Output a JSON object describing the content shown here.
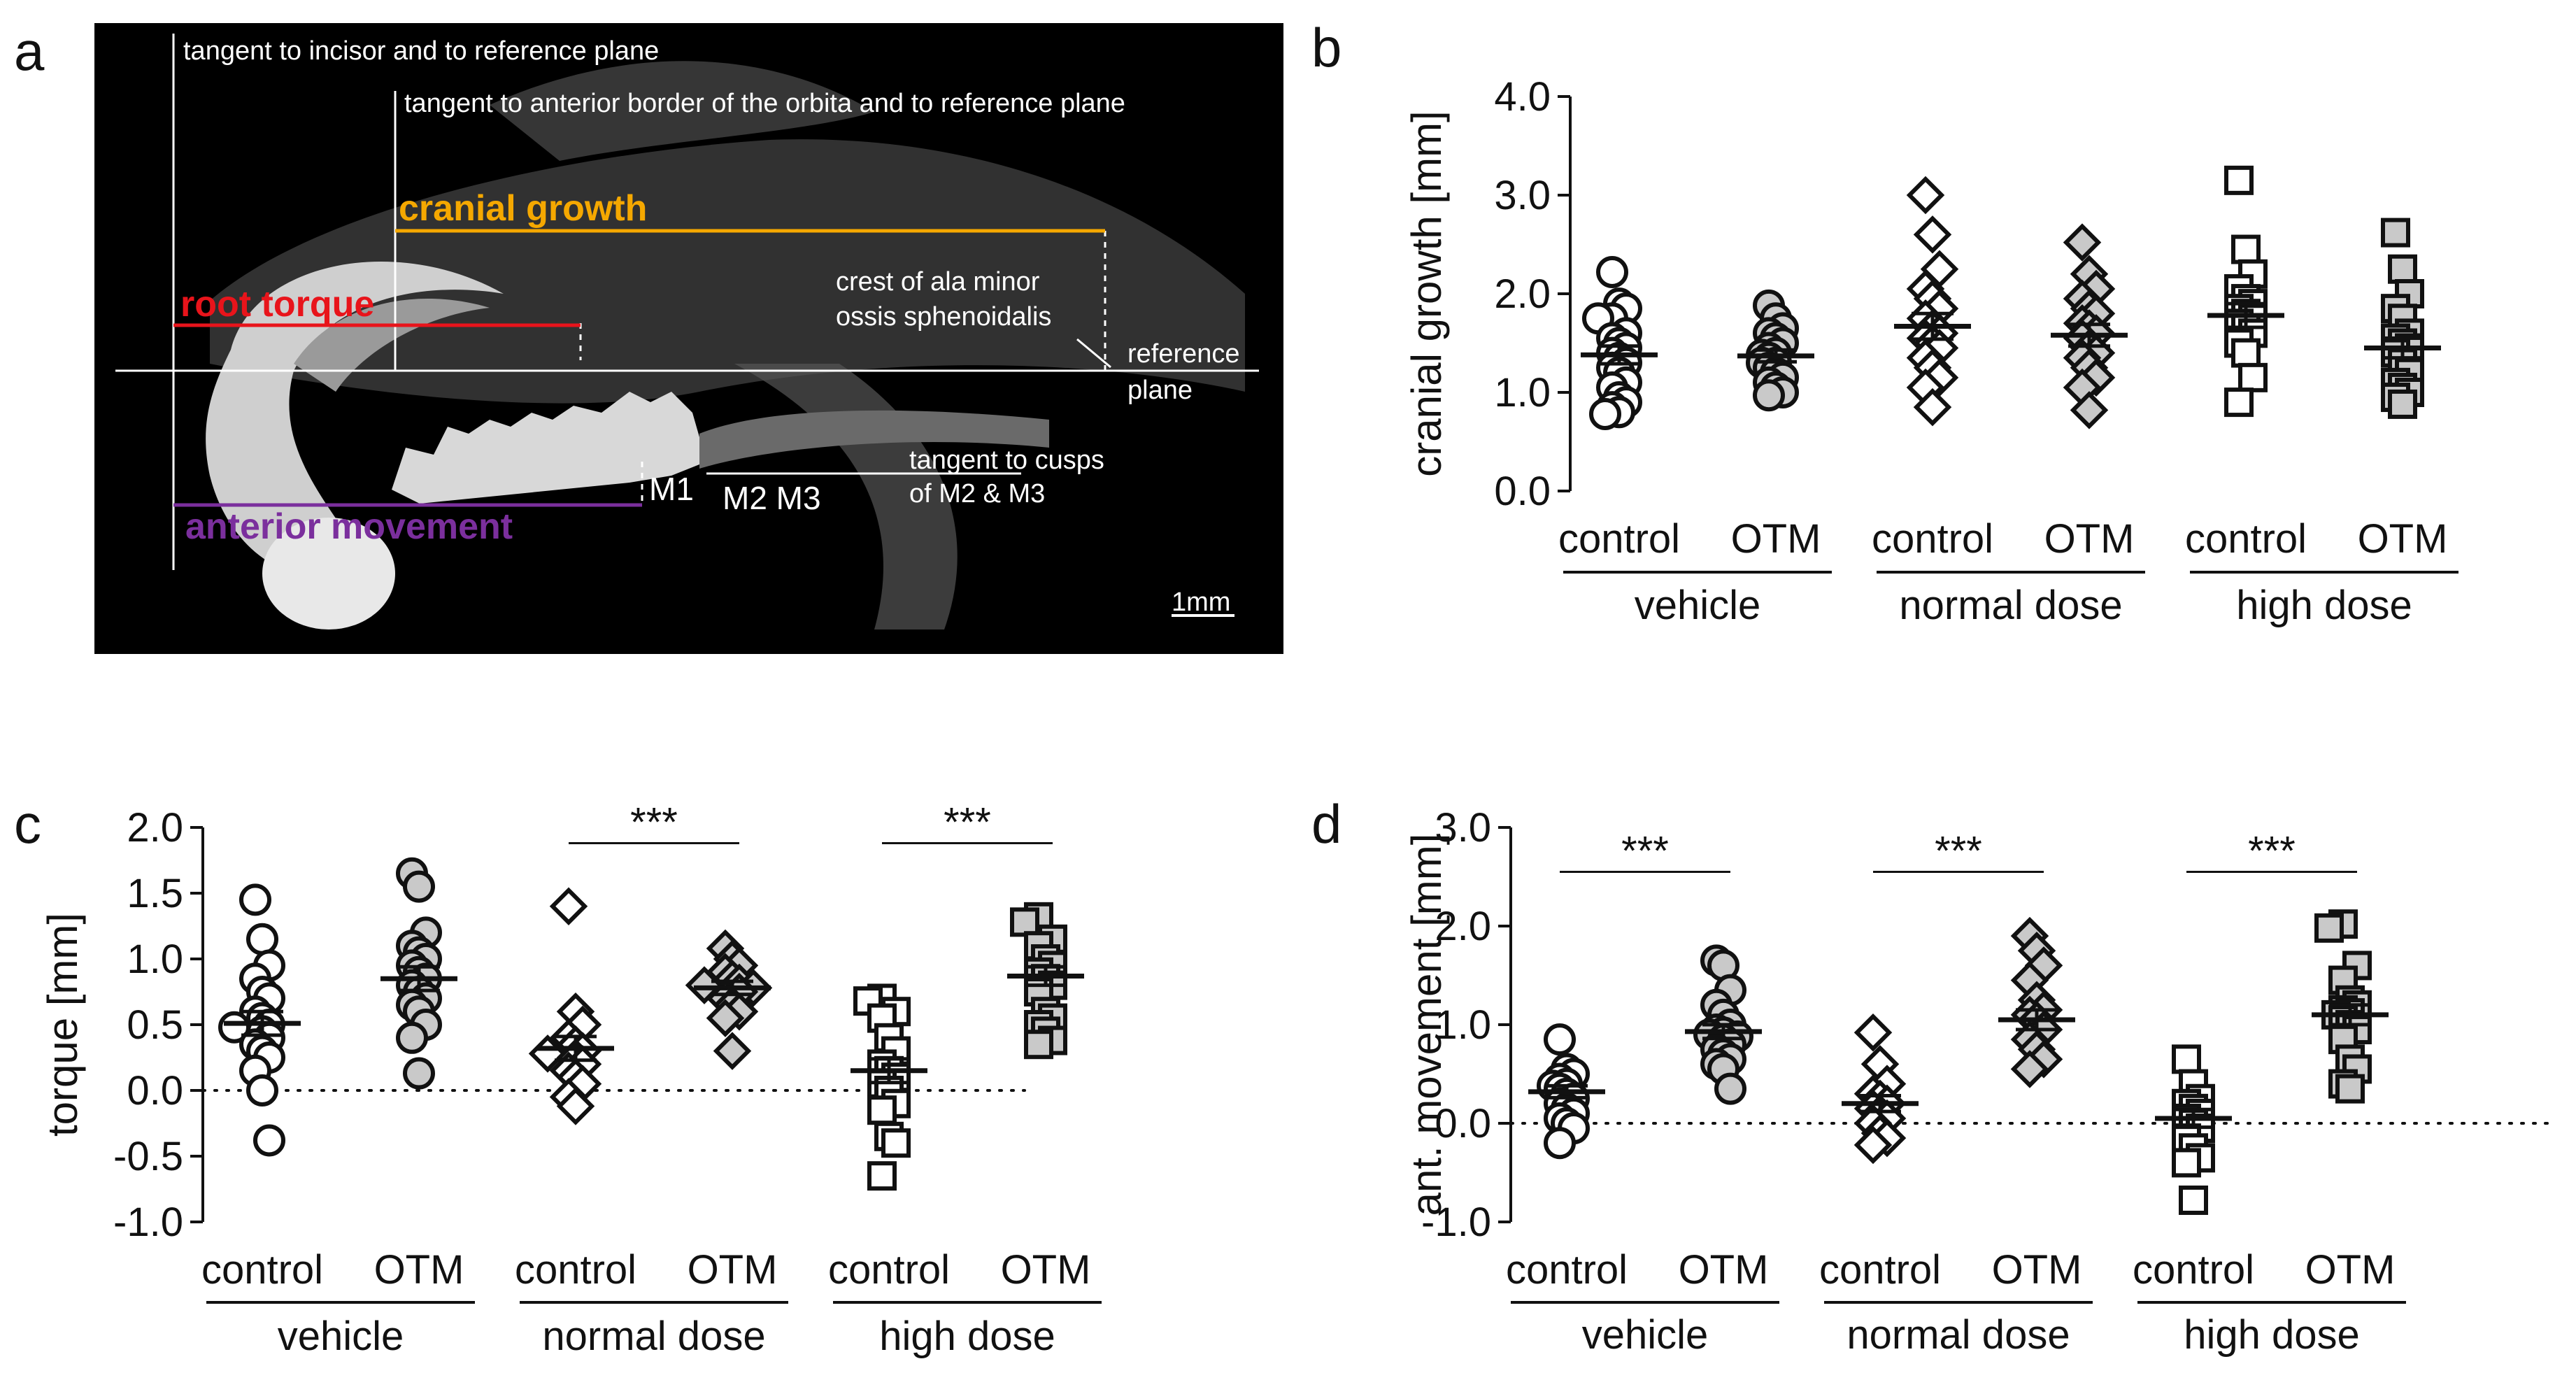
{
  "panel_a": {
    "label": "a",
    "annotations": {
      "tangent_incisor": "tangent to incisor and to reference plane",
      "tangent_orbita": "tangent to anterior border of the orbita and to reference plane",
      "cranial_growth": "cranial growth",
      "root_torque": "root torque",
      "anterior_movement": "anterior movement",
      "crest_line1": "crest of ala minor",
      "crest_line2": "ossis sphenoidalis",
      "reference_line1": "reference",
      "reference_line2": "plane",
      "m1": "M1",
      "m2m3": "M2 M3",
      "tangent_cusps_line1": "tangent to cusps",
      "tangent_cusps_line2": "of M2 & M3",
      "scale": "1mm"
    },
    "colors": {
      "cranial": "#f5a800",
      "torque": "#e8141b",
      "anterior": "#7b2f9d"
    }
  },
  "chart_data": [
    {
      "panel": "b",
      "type": "scatter",
      "ylabel": "cranial growth [mm]",
      "ylim": [
        0.0,
        4.0
      ],
      "yticks": [
        "0.0",
        "1.0",
        "2.0",
        "3.0",
        "4.0"
      ],
      "ytick_values": [
        0,
        1,
        2,
        3,
        4
      ],
      "zero_line": false,
      "columns": [
        "control",
        "OTM",
        "control",
        "OTM",
        "control",
        "OTM"
      ],
      "groups": [
        "vehicle",
        "normal dose",
        "high dose"
      ],
      "series": [
        {
          "name": "vehicle control",
          "marker": "circle",
          "fill": "white",
          "mean": 1.38,
          "sem": 0.09,
          "values": [
            2.22,
            1.9,
            1.85,
            1.75,
            1.75,
            1.6,
            1.55,
            1.5,
            1.45,
            1.4,
            1.35,
            1.3,
            1.25,
            1.2,
            1.1,
            1.05,
            0.95,
            0.9,
            0.85,
            0.8,
            0.78
          ]
        },
        {
          "name": "vehicle OTM",
          "marker": "circle",
          "fill": "grey",
          "mean": 1.37,
          "sem": 0.06,
          "values": [
            1.88,
            1.75,
            1.65,
            1.6,
            1.55,
            1.5,
            1.45,
            1.4,
            1.38,
            1.35,
            1.3,
            1.3,
            1.25,
            1.2,
            1.15,
            1.1,
            1.05,
            1.0,
            0.97
          ]
        },
        {
          "name": "normal dose control",
          "marker": "diamond",
          "fill": "white",
          "mean": 1.67,
          "sem": 0.13,
          "values": [
            3.0,
            2.6,
            2.25,
            2.05,
            1.95,
            1.85,
            1.75,
            1.65,
            1.6,
            1.55,
            1.5,
            1.45,
            1.35,
            1.25,
            1.15,
            1.05,
            0.85
          ]
        },
        {
          "name": "normal dose OTM",
          "marker": "diamond",
          "fill": "grey",
          "mean": 1.58,
          "sem": 0.11,
          "values": [
            2.52,
            2.2,
            2.05,
            1.95,
            1.85,
            1.8,
            1.7,
            1.65,
            1.6,
            1.55,
            1.45,
            1.4,
            1.35,
            1.25,
            1.15,
            1.05,
            0.82
          ]
        },
        {
          "name": "high dose control",
          "marker": "square",
          "fill": "white",
          "mean": 1.78,
          "sem": 0.12,
          "values": [
            3.15,
            2.45,
            2.2,
            2.05,
            1.95,
            1.9,
            1.85,
            1.8,
            1.75,
            1.7,
            1.65,
            1.6,
            1.5,
            1.4,
            1.15,
            0.9
          ]
        },
        {
          "name": "high dose OTM",
          "marker": "square",
          "fill": "grey",
          "mean": 1.45,
          "sem": 0.1,
          "values": [
            2.62,
            2.25,
            2.0,
            1.85,
            1.75,
            1.6,
            1.55,
            1.5,
            1.45,
            1.4,
            1.3,
            1.2,
            1.1,
            1.05,
            1.0,
            0.95,
            0.88
          ]
        }
      ],
      "significance": []
    },
    {
      "panel": "c",
      "type": "scatter",
      "ylabel": "torque [mm]",
      "ylim": [
        -1.0,
        2.0
      ],
      "yticks": [
        "-1.0",
        "-0.5",
        "0.0",
        "0.5",
        "1.0",
        "1.5",
        "2.0"
      ],
      "ytick_values": [
        -1.0,
        -0.5,
        0.0,
        0.5,
        1.0,
        1.5,
        2.0
      ],
      "zero_line": true,
      "columns": [
        "control",
        "OTM",
        "control",
        "OTM",
        "control",
        "OTM"
      ],
      "groups": [
        "vehicle",
        "normal dose",
        "high dose"
      ],
      "series": [
        {
          "name": "vehicle control",
          "marker": "circle",
          "fill": "white",
          "mean": 0.51,
          "sem": 0.09,
          "values": [
            1.45,
            1.15,
            0.95,
            0.85,
            0.75,
            0.7,
            0.6,
            0.55,
            0.5,
            0.48,
            0.45,
            0.4,
            0.35,
            0.3,
            0.25,
            0.15,
            0.0,
            -0.38
          ]
        },
        {
          "name": "vehicle OTM",
          "marker": "circle",
          "fill": "grey",
          "mean": 0.85,
          "sem": 0.09,
          "values": [
            1.65,
            1.55,
            1.2,
            1.1,
            1.05,
            1.0,
            0.95,
            0.9,
            0.85,
            0.8,
            0.75,
            0.7,
            0.65,
            0.6,
            0.5,
            0.4,
            0.13
          ]
        },
        {
          "name": "normal dose control",
          "marker": "diamond",
          "fill": "white",
          "mean": 0.32,
          "sem": 0.09,
          "values": [
            1.4,
            0.6,
            0.5,
            0.4,
            0.35,
            0.3,
            0.28,
            0.25,
            0.2,
            0.15,
            0.1,
            0.05,
            -0.05,
            -0.12
          ]
        },
        {
          "name": "normal dose OTM",
          "marker": "diamond",
          "fill": "grey",
          "mean": 0.78,
          "sem": 0.05,
          "values": [
            1.08,
            1.0,
            0.95,
            0.9,
            0.85,
            0.82,
            0.8,
            0.78,
            0.75,
            0.7,
            0.65,
            0.6,
            0.55,
            0.3
          ]
        },
        {
          "name": "high dose control",
          "marker": "square",
          "fill": "white",
          "mean": 0.15,
          "sem": 0.09,
          "values": [
            0.7,
            0.68,
            0.6,
            0.55,
            0.4,
            0.3,
            0.2,
            0.15,
            0.1,
            0.05,
            0.0,
            -0.1,
            -0.15,
            -0.35,
            -0.4,
            -0.65
          ]
        },
        {
          "name": "high dose OTM",
          "marker": "square",
          "fill": "grey",
          "mean": 0.87,
          "sem": 0.07,
          "values": [
            1.32,
            1.28,
            1.15,
            1.1,
            1.0,
            0.95,
            0.9,
            0.85,
            0.8,
            0.75,
            0.6,
            0.55,
            0.5,
            0.45,
            0.38,
            0.35
          ]
        }
      ],
      "significance": [
        {
          "label": "***",
          "from": 2,
          "to": 3,
          "y": 1.88
        },
        {
          "label": "***",
          "from": 4,
          "to": 5,
          "y": 1.88
        }
      ]
    },
    {
      "panel": "d",
      "type": "scatter",
      "ylabel": "ant. movement [mm]",
      "ylim": [
        -1.0,
        3.0
      ],
      "yticks": [
        "-1.0",
        "0.0",
        "1.0",
        "2.0",
        "3.0"
      ],
      "ytick_values": [
        -1.0,
        0.0,
        1.0,
        2.0,
        3.0
      ],
      "zero_line": true,
      "columns": [
        "control",
        "OTM",
        "control",
        "OTM",
        "control",
        "OTM"
      ],
      "groups": [
        "vehicle",
        "normal dose",
        "high dose"
      ],
      "series": [
        {
          "name": "vehicle control",
          "marker": "circle",
          "fill": "white",
          "mean": 0.32,
          "sem": 0.06,
          "values": [
            0.85,
            0.55,
            0.5,
            0.45,
            0.4,
            0.38,
            0.35,
            0.3,
            0.25,
            0.2,
            0.15,
            0.1,
            0.05,
            0.0,
            -0.05,
            -0.2
          ]
        },
        {
          "name": "vehicle OTM",
          "marker": "circle",
          "fill": "grey",
          "mean": 0.93,
          "sem": 0.07,
          "values": [
            1.65,
            1.6,
            1.35,
            1.2,
            1.1,
            1.0,
            0.95,
            0.92,
            0.9,
            0.88,
            0.85,
            0.8,
            0.75,
            0.7,
            0.65,
            0.6,
            0.55,
            0.35
          ]
        },
        {
          "name": "normal dose control",
          "marker": "diamond",
          "fill": "white",
          "mean": 0.2,
          "sem": 0.08,
          "values": [
            0.92,
            0.6,
            0.4,
            0.3,
            0.25,
            0.2,
            0.15,
            0.1,
            0.05,
            0.0,
            -0.1,
            -0.15,
            -0.22
          ]
        },
        {
          "name": "normal dose OTM",
          "marker": "diamond",
          "fill": "grey",
          "mean": 1.05,
          "sem": 0.1,
          "values": [
            1.9,
            1.75,
            1.6,
            1.45,
            1.25,
            1.15,
            1.1,
            1.05,
            0.95,
            0.85,
            0.75,
            0.65,
            0.55
          ]
        },
        {
          "name": "high dose control",
          "marker": "square",
          "fill": "white",
          "mean": 0.05,
          "sem": 0.09,
          "values": [
            0.65,
            0.4,
            0.25,
            0.2,
            0.15,
            0.1,
            0.05,
            0.0,
            -0.05,
            -0.15,
            -0.25,
            -0.35,
            -0.4,
            -0.78
          ]
        },
        {
          "name": "high dose OTM",
          "marker": "square",
          "fill": "grey",
          "mean": 1.1,
          "sem": 0.1,
          "values": [
            2.02,
            1.98,
            1.6,
            1.45,
            1.25,
            1.2,
            1.15,
            1.12,
            1.1,
            1.05,
            1.0,
            0.95,
            0.85,
            0.65,
            0.55,
            0.4,
            0.35
          ]
        }
      ],
      "significance": [
        {
          "label": "***",
          "from": 0,
          "to": 1,
          "y": 2.55
        },
        {
          "label": "***",
          "from": 2,
          "to": 3,
          "y": 2.55
        },
        {
          "label": "***",
          "from": 4,
          "to": 5,
          "y": 2.55
        }
      ]
    }
  ],
  "panel_labels": {
    "b": "b",
    "c": "c",
    "d": "d"
  }
}
